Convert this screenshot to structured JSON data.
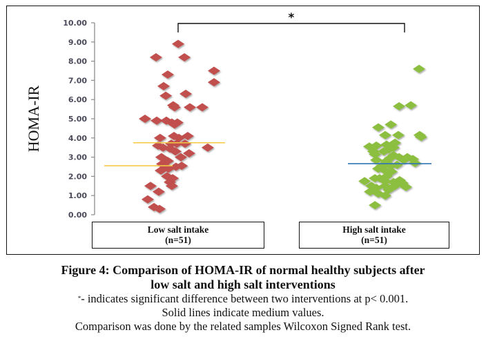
{
  "chart_data": {
    "type": "scatter",
    "title": "",
    "ylabel": "HOMA-IR",
    "xlabel": "",
    "ylim": [
      0,
      10
    ],
    "yticks": [
      "0.00",
      "1.00",
      "2.00",
      "3.00",
      "4.00",
      "5.00",
      "6.00",
      "7.00",
      "8.00",
      "9.00",
      "10.00"
    ],
    "grid": false,
    "categories": [
      {
        "label": "Low salt intake",
        "n_label": "(n=51)"
      },
      {
        "label": "High salt intake",
        "n_label": "(n=51)"
      }
    ],
    "significance": {
      "symbol": "*",
      "between": [
        1,
        2
      ]
    },
    "series": [
      {
        "name": "Low salt intake",
        "color": "#c0504d",
        "marker": "diamond",
        "x": [
          1.0,
          0.887,
          1.032,
          0.947,
          1.183,
          1.183,
          0.926,
          0.937,
          1.039,
          0.975,
          0.982,
          1.06,
          1.123,
          0.831,
          0.891,
          0.94,
          0.968,
          0.996,
          0.982,
          0.908,
          0.979,
          1.004,
          1.049,
          0.898,
          0.965,
          0.993,
          1.035,
          1.151,
          0.986,
          1.056,
          0.915,
          0.947,
          1.014,
          0.937,
          0.989,
          0.912,
          0.944,
          0.958,
          0.972,
          0.859,
          0.968,
          0.901,
          0.845,
          0.877,
          0.905,
          0.923,
          0.958,
          0.937,
          0.951,
          1.018,
          0.919
        ],
        "y": [
          8.9,
          8.2,
          8.2,
          7.3,
          7.5,
          6.9,
          6.7,
          6.2,
          6.3,
          5.7,
          5.6,
          5.6,
          5.6,
          5.0,
          4.9,
          4.9,
          4.8,
          4.8,
          4.7,
          4.0,
          4.1,
          4.0,
          4.1,
          3.6,
          3.7,
          3.7,
          3.7,
          3.5,
          3.3,
          3.2,
          3.0,
          2.8,
          3.0,
          2.5,
          2.5,
          2.3,
          2.0,
          1.7,
          1.9,
          1.5,
          1.5,
          1.2,
          0.8,
          0.4,
          0.3,
          3.5,
          3.45,
          2.75,
          2.4,
          2.55,
          2.65
        ],
        "median_lines": [
          2.55,
          3.75
        ],
        "median_color": "#f5c842"
      },
      {
        "name": "High salt intake",
        "color": "#8cbf3f",
        "marker": "diamond",
        "x": [
          2.229,
          2.127,
          2.187,
          2.021,
          2.085,
          2.056,
          2.123,
          2.232,
          2.239,
          1.975,
          2.011,
          2.063,
          2.106,
          2.004,
          2.049,
          2.074,
          2.099,
          2.127,
          2.169,
          2.197,
          2.208,
          2.011,
          2.063,
          2.021,
          2.056,
          2.088,
          1.951,
          2.004,
          2.056,
          2.099,
          2.13,
          1.986,
          2.011,
          2.056,
          2.074,
          2.106,
          1.979,
          2.021,
          2.056,
          2.004,
          2.144,
          2.162,
          2.039,
          2.116,
          2.085,
          2.063,
          2.028,
          1.996,
          2.081,
          2.151,
          2.099
        ],
        "y": [
          7.6,
          5.65,
          5.7,
          4.55,
          4.7,
          4.15,
          4.15,
          4.15,
          4.05,
          3.55,
          3.6,
          3.65,
          3.75,
          3.15,
          3.3,
          3.4,
          3.1,
          3.0,
          3.0,
          2.9,
          2.7,
          2.85,
          2.8,
          2.4,
          2.3,
          2.25,
          1.75,
          1.9,
          1.75,
          1.7,
          1.8,
          1.5,
          1.4,
          1.5,
          1.3,
          1.5,
          1.2,
          1.1,
          1.0,
          0.5,
          1.65,
          1.45,
          2.55,
          2.6,
          2.55,
          2.0,
          1.9,
          3.3,
          2.95,
          2.85,
          3.5
        ],
        "median_lines": [
          2.66
        ],
        "median_color": "#2e75b6"
      }
    ]
  },
  "caption": {
    "title_line1": "Figure 4: Comparison of HOMA-IR of normal healthy subjects after",
    "title_line2": "low salt and high salt interventions",
    "note_mark": "*",
    "note_line1": "- indicates significant difference between two interventions at p< 0.001.",
    "note_line2": "Solid lines indicate medium values.",
    "note_line3": "Comparison was done by the related samples Wilcoxon Signed Rank test."
  }
}
